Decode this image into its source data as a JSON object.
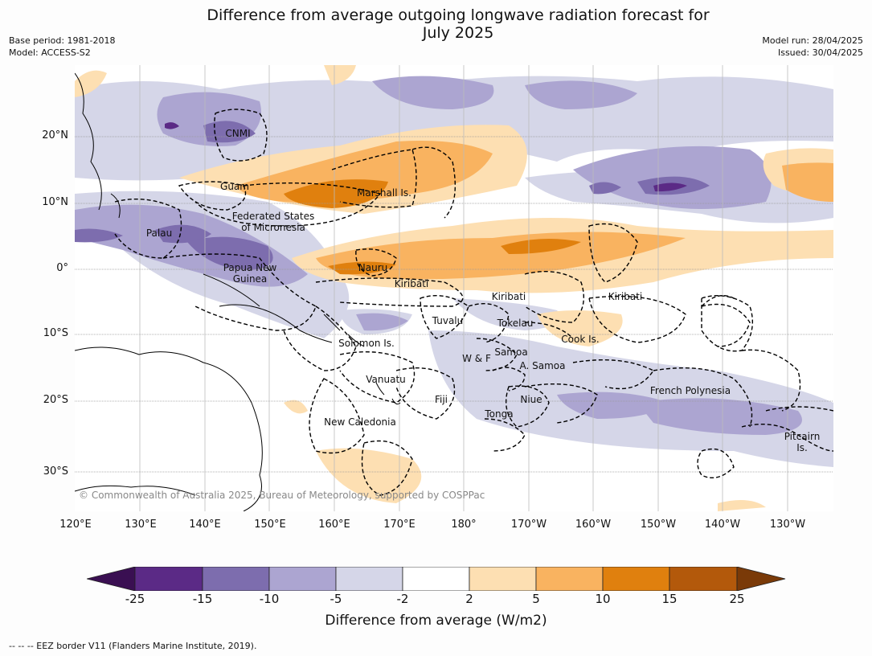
{
  "title": "Difference from average outgoing longwave radiation forecast for\nJuly 2025",
  "meta_left": [
    "Base period: 1981-2018",
    "Model: ACCESS-S2"
  ],
  "meta_right": [
    "Model run: 28/04/2025",
    "Issued: 30/04/2025"
  ],
  "lat_labels": [
    "20°N",
    "10°N",
    "0°",
    "10°S",
    "20°S",
    "30°S"
  ],
  "lon_labels": [
    "120°E",
    "130°E",
    "140°E",
    "150°E",
    "160°E",
    "170°E",
    "180°",
    "170°W",
    "160°W",
    "150°W",
    "140°W",
    "130°W"
  ],
  "regions": [
    "CNMI",
    "Guam",
    "Marshall Is.",
    "Federated States\nof Micronesia",
    "Palau",
    "Papua New\nGuinea",
    "Nauru",
    "Kiribati",
    "Kiribati",
    "Kiribati",
    "Tuvalu",
    "Tokelau",
    "Cook Is.",
    "Solomon Is.",
    "W & F",
    "Samoa",
    "A. Samoa",
    "Vanuatu",
    "Fiji",
    "Niue",
    "Tonga",
    "New Caledonia",
    "French Polynesia",
    "Pitcairn\nIs."
  ],
  "copyright": "© Commonwealth of Australia 2025, Bureau of Meteorology, supported by COSPPac",
  "colorbar": {
    "ticks": [
      "-25",
      "-15",
      "-10",
      "-5",
      "-2",
      "2",
      "5",
      "10",
      "15",
      "25"
    ],
    "colors": [
      "#3a0f52",
      "#5b2a86",
      "#7d6dae",
      "#aca5d1",
      "#d5d6e8",
      "#ffffff",
      "#fddfb2",
      "#f9b360",
      "#e0800e",
      "#b3590b",
      "#7a3a08"
    ],
    "title": "Difference from average (W/m2)"
  },
  "footnote": "--  --  -- EEZ border V11 (Flanders Marine Institute, 2019)."
}
